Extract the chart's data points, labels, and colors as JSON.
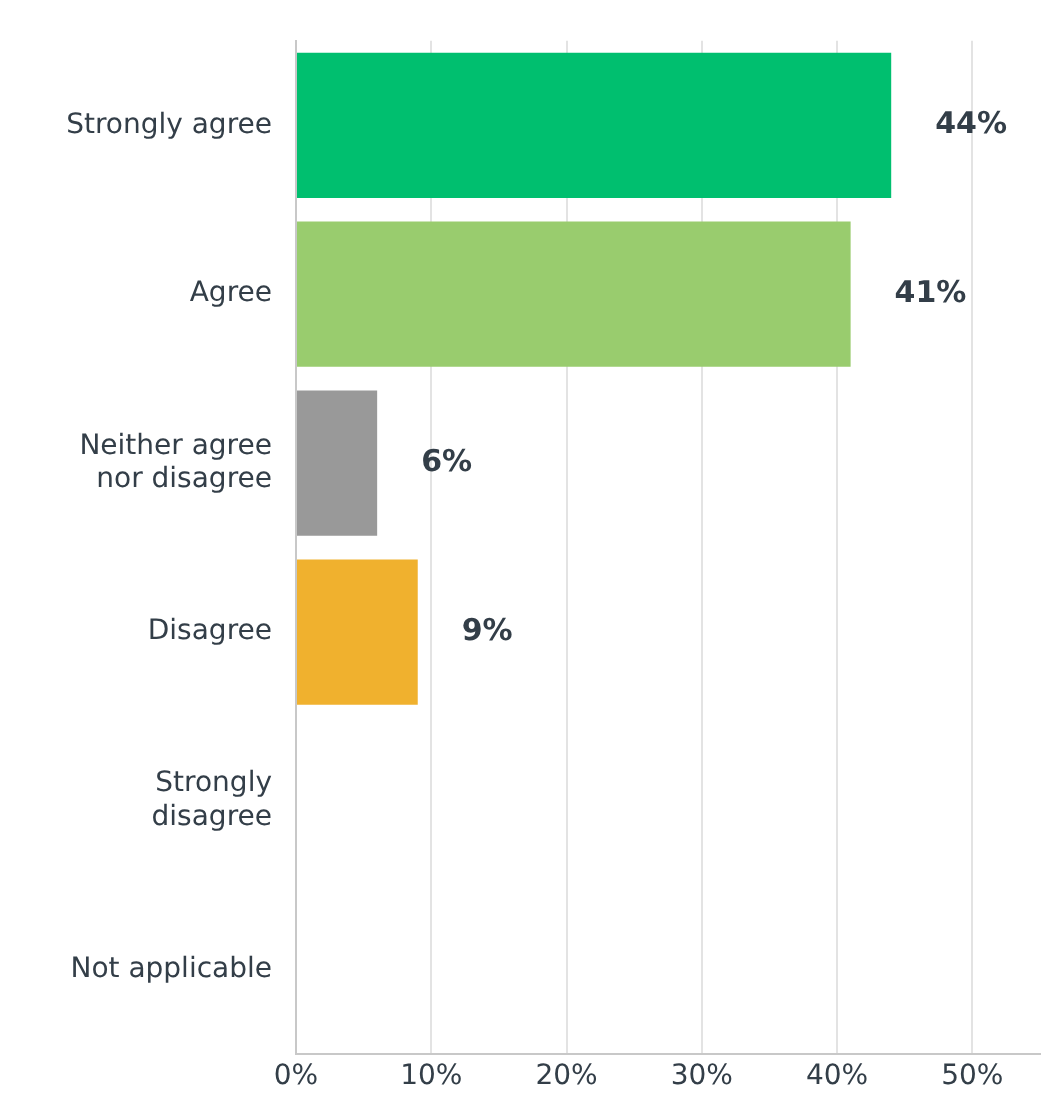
{
  "chart_data": {
    "type": "bar",
    "orientation": "horizontal",
    "categories": [
      "Strongly agree",
      "Agree",
      "Neither agree nor disagree",
      "Disagree",
      "Strongly disagree",
      "Not applicable"
    ],
    "values": [
      44,
      41,
      6,
      9,
      0,
      0
    ],
    "colors": [
      "#00bf6f",
      "#99cc6e",
      "#999999",
      "#f0b12e",
      "#cccccc",
      "#cccccc"
    ],
    "value_labels": [
      "44%",
      "41%",
      "6%",
      "9%",
      null,
      null
    ],
    "xlim": [
      0,
      55
    ],
    "xticks": [
      {
        "value": 0,
        "label": "0%"
      },
      {
        "value": 10,
        "label": "10%"
      },
      {
        "value": 20,
        "label": "20%"
      },
      {
        "value": 30,
        "label": "30%"
      },
      {
        "value": 40,
        "label": "40%"
      },
      {
        "value": 50,
        "label": "50%"
      }
    ],
    "grid": "x",
    "legend": false
  }
}
